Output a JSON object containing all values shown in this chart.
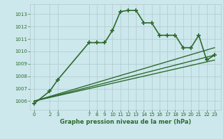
{
  "background_color": "#cce8ec",
  "grid_color": "#b0c8cc",
  "line_color": "#2d6a2d",
  "title": "Graphe pression niveau de la mer (hPa)",
  "ylim": [
    1005.3,
    1013.8
  ],
  "yticks": [
    1006,
    1007,
    1008,
    1009,
    1010,
    1011,
    1012,
    1013
  ],
  "xticks": [
    0,
    2,
    3,
    7,
    8,
    9,
    10,
    11,
    12,
    13,
    14,
    15,
    16,
    17,
    18,
    19,
    20,
    21,
    22,
    23
  ],
  "xlim": [
    -0.5,
    23.8
  ],
  "series": [
    {
      "x": [
        0,
        2,
        3,
        7,
        8,
        9,
        10,
        11,
        12,
        13,
        14,
        15,
        16,
        17,
        18,
        19,
        20,
        21,
        22,
        23
      ],
      "y": [
        1005.8,
        1006.8,
        1007.7,
        1010.7,
        1010.7,
        1010.7,
        1011.7,
        1013.2,
        1013.3,
        1013.3,
        1012.3,
        1012.3,
        1011.3,
        1011.3,
        1011.3,
        1010.3,
        1010.3,
        1011.3,
        1009.3,
        1009.7
      ],
      "marker": "+",
      "linewidth": 1.2,
      "markersize": 4.5
    },
    {
      "x": [
        0,
        23
      ],
      "y": [
        1006.0,
        1010.3
      ],
      "marker": null,
      "linewidth": 1.0
    },
    {
      "x": [
        0,
        23
      ],
      "y": [
        1006.0,
        1009.7
      ],
      "marker": null,
      "linewidth": 1.0
    },
    {
      "x": [
        0,
        23
      ],
      "y": [
        1006.0,
        1009.3
      ],
      "marker": null,
      "linewidth": 1.0
    }
  ]
}
